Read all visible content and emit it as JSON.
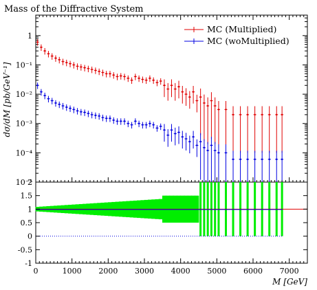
{
  "title": "Mass of the Diffractive System",
  "chart_data": [
    {
      "type": "scatter",
      "panel": "main",
      "title": "Mass of the Diffractive System",
      "ylabel": "dσ/dM [pb/GeV⁻¹]",
      "yscale": "log",
      "ylim": [
        1e-05,
        5
      ],
      "xlim": [
        0,
        7500
      ],
      "y_ticks": [
        "1",
        "10⁻¹",
        "10⁻²",
        "10⁻³",
        "10⁻⁴",
        "10⁻⁵"
      ],
      "legend_position": "top-right",
      "series": [
        {
          "name": "MC (Multiplied)",
          "color": "#e00000",
          "x": [
            50,
            150,
            250,
            350,
            450,
            550,
            650,
            750,
            850,
            950,
            1050,
            1150,
            1250,
            1350,
            1450,
            1550,
            1650,
            1750,
            1850,
            1950,
            2050,
            2150,
            2250,
            2350,
            2450,
            2550,
            2650,
            2750,
            2850,
            2950,
            3050,
            3150,
            3250,
            3350,
            3450,
            3550,
            3650,
            3750,
            3850,
            3950,
            4050,
            4150,
            4250,
            4350,
            4450,
            4550,
            4650,
            4750,
            4850,
            4950,
            5050,
            5250,
            5450,
            5650,
            5850,
            6050,
            6250,
            6450,
            6650,
            6800
          ],
          "y": [
            0.6,
            0.4,
            0.3,
            0.24,
            0.2,
            0.17,
            0.15,
            0.13,
            0.12,
            0.11,
            0.1,
            0.09,
            0.085,
            0.08,
            0.075,
            0.07,
            0.065,
            0.06,
            0.055,
            0.05,
            0.05,
            0.045,
            0.04,
            0.042,
            0.04,
            0.035,
            0.03,
            0.04,
            0.035,
            0.032,
            0.03,
            0.035,
            0.03,
            0.025,
            0.028,
            0.02,
            0.015,
            0.02,
            0.015,
            0.018,
            0.012,
            0.01,
            0.008,
            0.012,
            0.006,
            0.008,
            0.005,
            0.004,
            0.006,
            0.004,
            0.003,
            0.003,
            0.002,
            0.002,
            0.002,
            0.002,
            0.002,
            0.002,
            0.002,
            0.002
          ]
        },
        {
          "name": "MC (woMultiplied)",
          "color": "#0000e0",
          "x": [
            50,
            150,
            250,
            350,
            450,
            550,
            650,
            750,
            850,
            950,
            1050,
            1150,
            1250,
            1350,
            1450,
            1550,
            1650,
            1750,
            1850,
            1950,
            2050,
            2150,
            2250,
            2350,
            2450,
            2550,
            2650,
            2750,
            2850,
            2950,
            3050,
            3150,
            3250,
            3350,
            3450,
            3550,
            3650,
            3750,
            3850,
            3950,
            4050,
            4150,
            4250,
            4350,
            4450,
            4550,
            4650,
            4750,
            4850,
            4950,
            5050,
            5250,
            5450,
            5650,
            5850,
            6050,
            6250,
            6450,
            6650,
            6800
          ],
          "y": [
            0.02,
            0.012,
            0.009,
            0.007,
            0.006,
            0.005,
            0.0045,
            0.004,
            0.0036,
            0.0033,
            0.003,
            0.0027,
            0.0025,
            0.0024,
            0.0022,
            0.002,
            0.0019,
            0.0018,
            0.0016,
            0.0015,
            0.0015,
            0.0013,
            0.0012,
            0.0012,
            0.0012,
            0.001,
            0.0009,
            0.0012,
            0.001,
            0.0009,
            0.0009,
            0.001,
            0.0009,
            0.0007,
            0.0008,
            0.0006,
            0.0004,
            0.0006,
            0.00045,
            0.0005,
            0.00035,
            0.0003,
            0.00024,
            0.00035,
            0.00018,
            0.00024,
            0.00015,
            0.00012,
            0.00018,
            0.00012,
            0.0001,
            0.0001,
            6e-05,
            6e-05,
            6e-05,
            6e-05,
            6e-05,
            6e-05,
            6e-05,
            6e-05
          ]
        }
      ]
    },
    {
      "type": "scatter",
      "panel": "ratio",
      "xlabel": "M [GeV]",
      "xlim": [
        0,
        7500
      ],
      "ylim": [
        -1,
        2
      ],
      "x_ticks": [
        "0",
        "1000",
        "2000",
        "3000",
        "4000",
        "5000",
        "6000",
        "7000"
      ],
      "y_ticks": [
        "2",
        "1.5",
        "1",
        "0.5",
        "0",
        "-0.5",
        "-1"
      ],
      "band_color": "#00ee00",
      "series": [
        {
          "name": "",
          "color": "#e00000",
          "constant": 1
        },
        {
          "name": "",
          "color": "#0000e0",
          "constant": 1
        },
        {
          "name": "",
          "color": "#0000e0",
          "constant": 0
        }
      ]
    }
  ]
}
